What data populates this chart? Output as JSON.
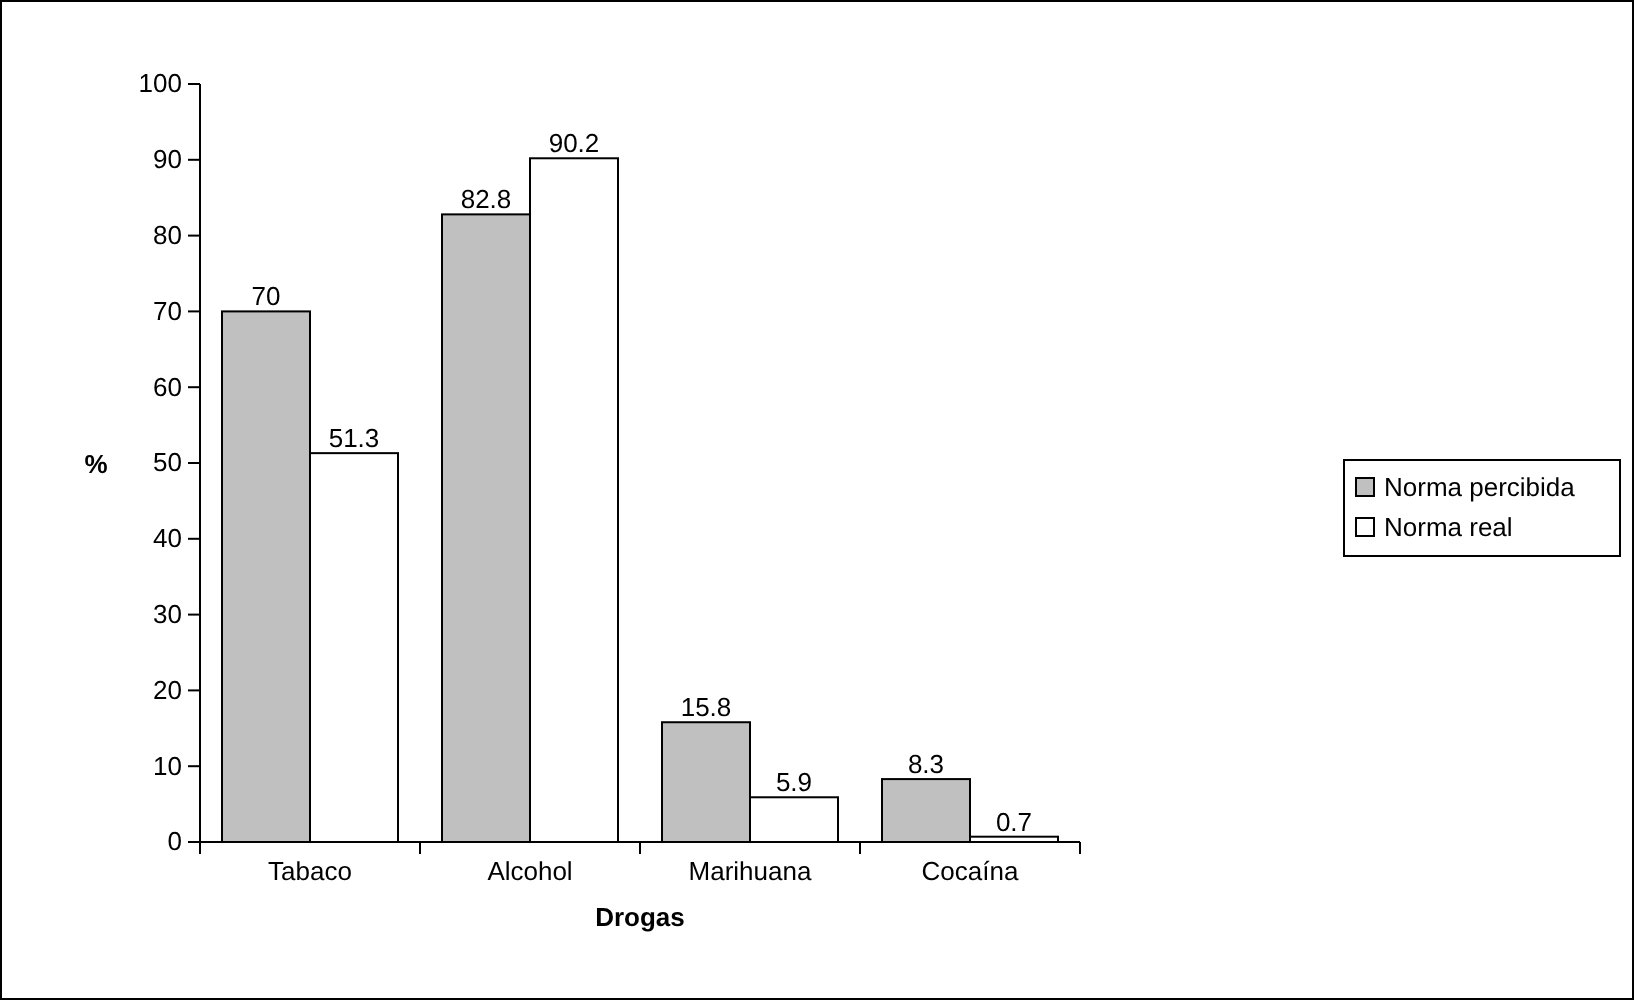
{
  "chart_data": {
    "type": "bar",
    "xlabel": "Drogas",
    "ylabel": "%",
    "categories": [
      "Tabaco",
      "Alcohol",
      "Marihuana",
      "Cocaína"
    ],
    "series": [
      {
        "name": "Norma percibida",
        "color": "#c0c0c0",
        "values": [
          70,
          82.8,
          15.8,
          8.3
        ]
      },
      {
        "name": "Norma real",
        "color": "#ffffff",
        "values": [
          51.3,
          90.2,
          5.9,
          0.7
        ]
      }
    ],
    "ylim": [
      0,
      100
    ],
    "yticks": [
      0,
      10,
      20,
      30,
      40,
      50,
      60,
      70,
      80,
      90,
      100
    ],
    "grid": false,
    "legend": "right",
    "data_labels": true
  }
}
